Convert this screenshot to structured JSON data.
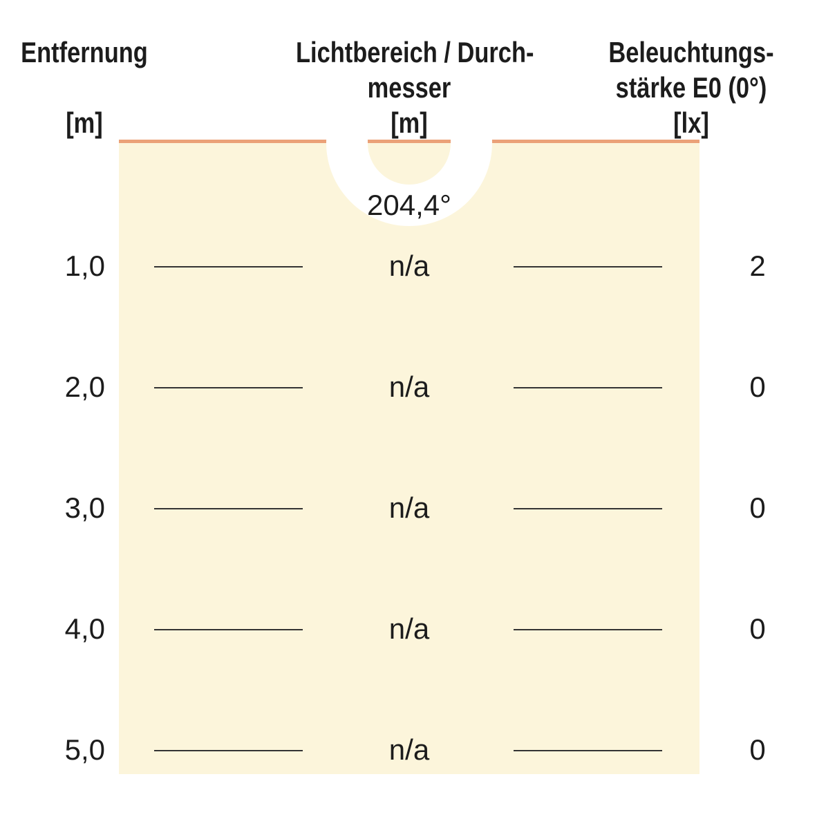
{
  "colors": {
    "background": "#ffffff",
    "area_fill": "#fcf5db",
    "area_border": "#eba178",
    "rule_line": "#333333",
    "text": "#1c1c1c"
  },
  "header": {
    "columns": [
      {
        "line1": "Entfernung",
        "line2": "",
        "line3": "[m]"
      },
      {
        "line1": "Lichtbereich / Durch-",
        "line2": "messer",
        "line3": "[m]"
      },
      {
        "line1": "Beleuchtungs-",
        "line2": "stärke E0 (0°)",
        "line3": "[lx]"
      }
    ]
  },
  "beam": {
    "angle_label": "204,4°"
  },
  "rows": [
    {
      "distance": "1,0",
      "diameter": "n/a",
      "illuminance": "2"
    },
    {
      "distance": "2,0",
      "diameter": "n/a",
      "illuminance": "0"
    },
    {
      "distance": "3,0",
      "diameter": "n/a",
      "illuminance": "0"
    },
    {
      "distance": "4,0",
      "diameter": "n/a",
      "illuminance": "0"
    },
    {
      "distance": "5,0",
      "diameter": "n/a",
      "illuminance": "0"
    }
  ],
  "chart_data": {
    "type": "table",
    "title": "Beam illumination table",
    "beam_angle_deg": 204.4,
    "columns": [
      "Entfernung [m]",
      "Lichtbereich / Durchmesser [m]",
      "Beleuchtungsstärke E0 (0°) [lx]"
    ],
    "rows": [
      [
        1.0,
        "n/a",
        2
      ],
      [
        2.0,
        "n/a",
        0
      ],
      [
        3.0,
        "n/a",
        0
      ],
      [
        4.0,
        "n/a",
        0
      ],
      [
        5.0,
        "n/a",
        0
      ]
    ]
  }
}
